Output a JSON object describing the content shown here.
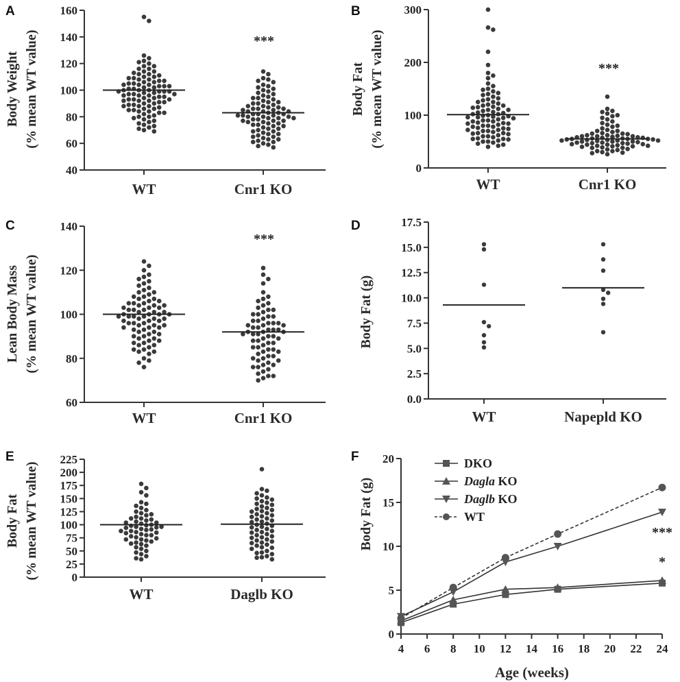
{
  "colors": {
    "ink": "#3a3a3a",
    "axis": "#333333"
  },
  "chart_data": [
    {
      "panel": "A",
      "type": "scatter",
      "ylabel_line1": "Body Weight",
      "ylabel_line2": "(% mean WT value)",
      "ylim": [
        40,
        160
      ],
      "yticks": [
        "40",
        "60",
        "80",
        "100",
        "120",
        "140",
        "160"
      ],
      "categories": [
        "WT",
        "Cnr1 KO"
      ],
      "means": [
        100,
        83
      ],
      "significance": "***",
      "groups": [
        {
          "name": "WT",
          "values": [
            152,
            155,
            122,
            126,
            124,
            120,
            118,
            116,
            114,
            113,
            112,
            111,
            110,
            110,
            109,
            108,
            108,
            107,
            106,
            105,
            105,
            104,
            104,
            103,
            103,
            102,
            102,
            101,
            101,
            100,
            100,
            100,
            99,
            99,
            99,
            98,
            98,
            97,
            97,
            96,
            96,
            95,
            95,
            94,
            94,
            93,
            93,
            92,
            92,
            91,
            90,
            90,
            89,
            88,
            88,
            87,
            86,
            85,
            84,
            83,
            82,
            80,
            79,
            77,
            75,
            72,
            69,
            116,
            114,
            106,
            104,
            97,
            96,
            93,
            91,
            89,
            86,
            84,
            81,
            78,
            73,
            121,
            118,
            112,
            109,
            107,
            103,
            99,
            92,
            88,
            85,
            83,
            80,
            76,
            74,
            71,
            70
          ]
        },
        {
          "name": "Cnr1 KO",
          "values": [
            114,
            112,
            109,
            108,
            106,
            104,
            102,
            100,
            99,
            98,
            96,
            95,
            94,
            93,
            92,
            91,
            90,
            89,
            88,
            87,
            86,
            86,
            85,
            85,
            84,
            84,
            83,
            83,
            82,
            82,
            82,
            81,
            81,
            80,
            80,
            79,
            79,
            78,
            78,
            77,
            77,
            76,
            76,
            75,
            74,
            74,
            73,
            72,
            71,
            70,
            69,
            68,
            67,
            66,
            65,
            64,
            63,
            62,
            61,
            60,
            58,
            57,
            107,
            101,
            97,
            94,
            91,
            88,
            86,
            84,
            81,
            79,
            77,
            75,
            73,
            71,
            69,
            67,
            65,
            63,
            61,
            59,
            103,
            90,
            87,
            80
          ]
        }
      ]
    },
    {
      "panel": "B",
      "type": "scatter",
      "ylabel_line1": "Body Fat",
      "ylabel_line2": "(% mean WT value)",
      "ylim": [
        0,
        300
      ],
      "yticks": [
        "0",
        "100",
        "200",
        "300"
      ],
      "categories": [
        "WT",
        "Cnr1 KO"
      ],
      "means": [
        101,
        55
      ],
      "significance": "***",
      "groups": [
        {
          "name": "WT",
          "values": [
            300,
            266,
            262,
            220,
            195,
            180,
            175,
            170,
            160,
            155,
            150,
            148,
            145,
            142,
            140,
            138,
            135,
            132,
            130,
            128,
            125,
            122,
            120,
            118,
            116,
            114,
            112,
            110,
            108,
            106,
            105,
            104,
            102,
            100,
            99,
            98,
            96,
            95,
            94,
            92,
            90,
            88,
            86,
            85,
            84,
            82,
            80,
            78,
            76,
            75,
            74,
            72,
            70,
            68,
            66,
            65,
            64,
            62,
            60,
            58,
            56,
            55,
            54,
            52,
            50,
            48,
            46,
            44,
            42,
            40,
            118,
            110,
            102,
            96,
            90,
            84,
            78,
            72,
            66,
            60,
            55,
            50,
            125,
            115,
            97,
            88,
            80,
            70
          ]
        },
        {
          "name": "Cnr1 KO",
          "values": [
            135,
            112,
            108,
            106,
            103,
            100,
            98,
            95,
            92,
            88,
            85,
            82,
            80,
            78,
            75,
            72,
            70,
            68,
            66,
            65,
            64,
            62,
            61,
            60,
            60,
            59,
            58,
            57,
            57,
            56,
            55,
            55,
            54,
            54,
            53,
            52,
            52,
            51,
            50,
            50,
            49,
            48,
            47,
            46,
            45,
            44,
            43,
            42,
            41,
            40,
            39,
            38,
            36,
            34,
            32,
            30,
            28,
            26,
            62,
            58,
            56,
            53,
            50,
            47,
            44,
            41,
            38,
            35,
            32,
            29,
            70,
            65,
            60,
            55,
            52,
            48,
            45,
            42
          ]
        }
      ]
    },
    {
      "panel": "C",
      "type": "scatter",
      "ylabel_line1": "Lean Body Mass",
      "ylabel_line2": "(% mean WT value)",
      "ylim": [
        60,
        140
      ],
      "yticks": [
        "60",
        "80",
        "100",
        "120",
        "140"
      ],
      "categories": [
        "WT",
        "Cnr1 KO"
      ],
      "means": [
        100,
        92
      ],
      "significance": "***",
      "groups": [
        {
          "name": "WT",
          "values": [
            124,
            122,
            120,
            118,
            116,
            115,
            113,
            112,
            111,
            110,
            109,
            108,
            107,
            107,
            106,
            105,
            105,
            104,
            104,
            103,
            103,
            102,
            102,
            101,
            101,
            101,
            100,
            100,
            100,
            99,
            99,
            99,
            98,
            98,
            97,
            97,
            96,
            96,
            95,
            95,
            94,
            94,
            93,
            93,
            92,
            91,
            90,
            89,
            88,
            87,
            86,
            85,
            84,
            83,
            82,
            80,
            78,
            76,
            110,
            106,
            104,
            102,
            100,
            98,
            96,
            94,
            92,
            90,
            88,
            86,
            84,
            114,
            108,
            103,
            99,
            95,
            91,
            87,
            83,
            79,
            117,
            105,
            97,
            89
          ]
        },
        {
          "name": "Cnr1 KO",
          "values": [
            121,
            118,
            116,
            114,
            110,
            108,
            106,
            105,
            104,
            103,
            102,
            101,
            100,
            99,
            98,
            97,
            96,
            96,
            95,
            95,
            94,
            94,
            93,
            93,
            92,
            92,
            91,
            91,
            90,
            90,
            89,
            88,
            87,
            86,
            85,
            84,
            83,
            82,
            81,
            80,
            79,
            78,
            77,
            76,
            75,
            74,
            73,
            72,
            71,
            70,
            102,
            99,
            97,
            95,
            93,
            91,
            89,
            87,
            85,
            83,
            81,
            79,
            77,
            107,
            100,
            96,
            92,
            88,
            84,
            80,
            76,
            72
          ]
        }
      ]
    },
    {
      "panel": "D",
      "type": "scatter",
      "ylabel_line1": "Body Fat (g)",
      "ylim": [
        0,
        17.5
      ],
      "yticks": [
        "0.0",
        "2.5",
        "5.0",
        "7.5",
        "10.0",
        "12.5",
        "15.0",
        "17.5"
      ],
      "categories": [
        "WT",
        "Napepld KO"
      ],
      "means": [
        9.3,
        11.0
      ],
      "groups": [
        {
          "name": "WT",
          "values": [
            15.3,
            14.8,
            11.3,
            7.6,
            7.2,
            6.3,
            5.6,
            5.1
          ]
        },
        {
          "name": "Napepld KO",
          "values": [
            15.3,
            13.8,
            12.7,
            10.8,
            10.5,
            9.9,
            9.4,
            6.6
          ]
        }
      ]
    },
    {
      "panel": "E",
      "type": "scatter",
      "ylabel_line1": "Body Fat",
      "ylabel_line2": "(% mean WT value)",
      "ylim": [
        0,
        225
      ],
      "yticks": [
        "0",
        "25",
        "50",
        "75",
        "100",
        "125",
        "150",
        "175",
        "200",
        "225"
      ],
      "categories": [
        "WT",
        "Daglb KO"
      ],
      "means": [
        100,
        101
      ],
      "groups": [
        {
          "name": "WT",
          "values": [
            178,
            170,
            162,
            156,
            143,
            140,
            136,
            132,
            128,
            125,
            122,
            120,
            118,
            115,
            112,
            110,
            108,
            106,
            104,
            102,
            100,
            99,
            98,
            96,
            95,
            94,
            92,
            91,
            90,
            88,
            86,
            85,
            84,
            82,
            80,
            78,
            76,
            74,
            72,
            70,
            68,
            66,
            63,
            60,
            57,
            54,
            50,
            47,
            44,
            40,
            36,
            34,
            112,
            104,
            96,
            88,
            80,
            72,
            64
          ]
        },
        {
          "name": "Daglb KO",
          "values": [
            206,
            168,
            165,
            160,
            156,
            152,
            148,
            145,
            142,
            138,
            135,
            132,
            130,
            128,
            125,
            122,
            120,
            118,
            115,
            112,
            110,
            108,
            105,
            102,
            100,
            98,
            95,
            92,
            90,
            88,
            85,
            82,
            80,
            78,
            75,
            72,
            70,
            68,
            65,
            62,
            60,
            57,
            54,
            50,
            47,
            44,
            40,
            37,
            34,
            150,
            140,
            126,
            116,
            106,
            96,
            86,
            76,
            66,
            56,
            46,
            38
          ]
        }
      ]
    },
    {
      "panel": "F",
      "type": "line",
      "ylabel": "Body Fat (g)",
      "xlabel": "Age (weeks)",
      "ylim": [
        0,
        20
      ],
      "xlim": [
        4,
        24
      ],
      "yticks": [
        "0",
        "5",
        "10",
        "15",
        "20"
      ],
      "xticks": [
        "4",
        "6",
        "8",
        "10",
        "12",
        "14",
        "16",
        "18",
        "20",
        "22",
        "24"
      ],
      "x": [
        4,
        8,
        12,
        16,
        24
      ],
      "series": [
        {
          "name": "DKO",
          "legend": "DKO",
          "marker": "square",
          "dash": "solid",
          "values": [
            1.3,
            3.4,
            4.5,
            5.1,
            5.8
          ]
        },
        {
          "name": "Dagla KO",
          "legend_italic": "Dagla",
          "legend_rest": " KO",
          "marker": "triangle-up",
          "dash": "solid",
          "values": [
            1.5,
            3.9,
            5.1,
            5.3,
            6.1
          ]
        },
        {
          "name": "Daglb KO",
          "legend_italic": "Daglb",
          "legend_rest": " KO",
          "marker": "triangle-down",
          "dash": "solid",
          "values": [
            2.0,
            4.8,
            8.2,
            10.0,
            13.9
          ]
        },
        {
          "name": "WT",
          "legend": "WT",
          "marker": "circle",
          "dash": "dashed",
          "values": [
            1.8,
            5.3,
            8.7,
            11.4,
            16.7
          ]
        }
      ],
      "annotations": [
        "***",
        "*"
      ]
    }
  ]
}
